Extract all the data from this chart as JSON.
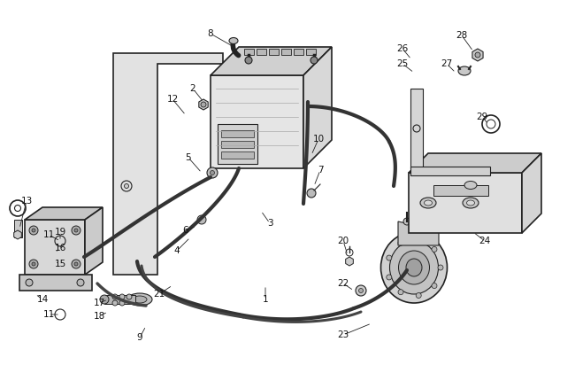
{
  "background_color": "#ffffff",
  "line_color": "#222222",
  "label_color": "#111111",
  "label_fontsize": 7.5,
  "cable_lw": 3.0,
  "labels": [
    [
      "1",
      300,
      338,
      300,
      322
    ],
    [
      "2",
      218,
      100,
      230,
      115
    ],
    [
      "3",
      305,
      252,
      295,
      238
    ],
    [
      "4",
      200,
      283,
      215,
      268
    ],
    [
      "5",
      213,
      178,
      228,
      195
    ],
    [
      "6",
      210,
      260,
      222,
      255
    ],
    [
      "7",
      362,
      192,
      355,
      210
    ],
    [
      "8",
      238,
      38,
      268,
      55
    ],
    [
      "9",
      158,
      381,
      165,
      368
    ],
    [
      "10",
      360,
      157,
      352,
      175
    ],
    [
      "11",
      55,
      265,
      68,
      272
    ],
    [
      "11",
      55,
      355,
      68,
      355
    ],
    [
      "12",
      195,
      112,
      210,
      130
    ],
    [
      "13",
      30,
      227,
      22,
      258
    ],
    [
      "14",
      48,
      338,
      40,
      332
    ],
    [
      "15",
      68,
      298,
      62,
      295
    ],
    [
      "16",
      68,
      280,
      62,
      285
    ],
    [
      "17",
      112,
      342,
      122,
      338
    ],
    [
      "18",
      112,
      357,
      122,
      352
    ],
    [
      "19",
      68,
      262,
      68,
      272
    ],
    [
      "20",
      388,
      272,
      393,
      288
    ],
    [
      "21",
      180,
      332,
      195,
      322
    ],
    [
      "22",
      388,
      320,
      400,
      328
    ],
    [
      "23",
      388,
      378,
      420,
      365
    ],
    [
      "24",
      548,
      272,
      535,
      262
    ],
    [
      "25",
      455,
      72,
      468,
      82
    ],
    [
      "26",
      455,
      55,
      465,
      67
    ],
    [
      "27",
      505,
      72,
      515,
      82
    ],
    [
      "28",
      522,
      40,
      535,
      58
    ],
    [
      "29",
      545,
      132,
      552,
      140
    ]
  ]
}
